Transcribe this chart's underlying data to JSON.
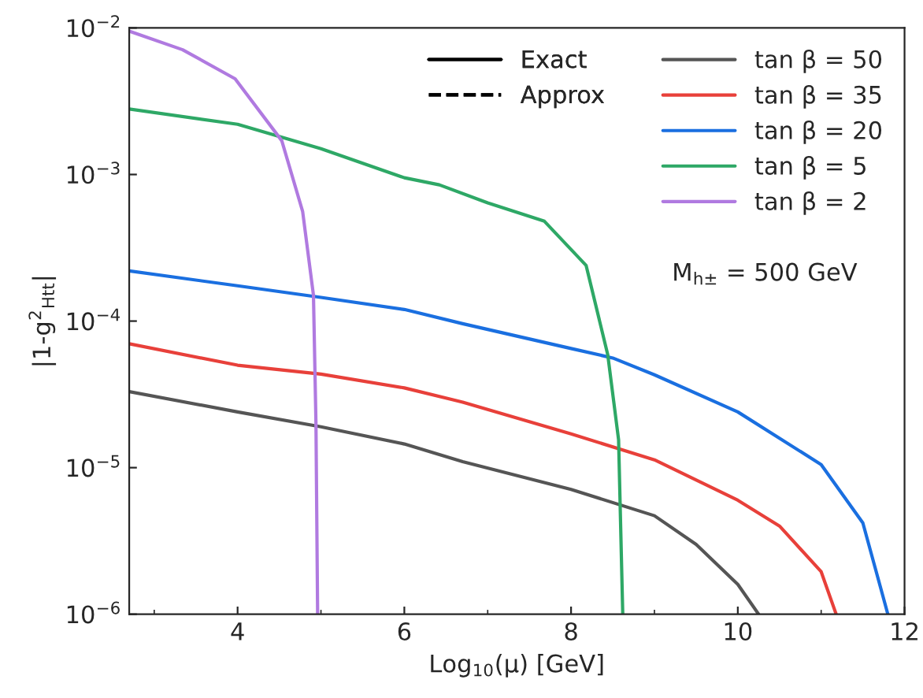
{
  "chart_data": {
    "type": "line",
    "xlabel": "Log$_{10}$(μ) [GeV]",
    "ylabel": "|1-g$^{2}$$_{Htt}$|",
    "log": "y",
    "xlim": [
      2.7,
      12
    ],
    "ylim": [
      1e-06,
      0.01
    ],
    "xticks": [
      {
        "value": 3,
        "label": null
      },
      4,
      {
        "value": 5,
        "label": null
      },
      6,
      {
        "value": 7,
        "label": null
      },
      8,
      {
        "value": 9,
        "label": null
      },
      10,
      {
        "value": 11,
        "label": null
      },
      12
    ],
    "yticks": [
      {
        "value": 1e-06,
        "label": "10$^{−6}$"
      },
      {
        "value": 1e-05,
        "label": "10$^{−5}$"
      },
      {
        "value": 0.0001,
        "label": "10$^{−4}$"
      },
      {
        "value": 0.001,
        "label": "10$^{−3}$"
      },
      {
        "value": 0.01,
        "label": "10$^{−2}$"
      }
    ],
    "grid": false,
    "legend": "top right",
    "line_style": "solid",
    "marker": "none",
    "annotations": [
      "Exact",
      "Approx",
      "M$_{h±}$ = 500 GeV"
    ],
    "series": [
      {
        "name": "tan β = 50",
        "color": "#555555",
        "x": [
          2.7,
          4,
          5,
          6,
          6.7,
          8,
          9,
          9.5,
          10,
          10.25
        ],
        "values": [
          3.3e-05,
          2.4e-05,
          1.9e-05,
          1.45e-05,
          1.1e-05,
          7.1e-06,
          4.7e-06,
          3e-06,
          1.6e-06,
          1e-06
        ]
      },
      {
        "name": "tan β = 35",
        "color": "#e8403a",
        "x": [
          2.7,
          4,
          5,
          6,
          6.7,
          8,
          9,
          10,
          10.5,
          11,
          11.18
        ],
        "values": [
          7e-05,
          5e-05,
          4.35e-05,
          3.5e-05,
          2.8e-05,
          1.7e-05,
          1.13e-05,
          6e-06,
          4e-06,
          1.95e-06,
          1e-06
        ]
      },
      {
        "name": "tan β = 20",
        "color": "#1a6fe0",
        "x": [
          2.7,
          4,
          5,
          6,
          6.7,
          8,
          8.5,
          9,
          10,
          11,
          11.5,
          11.8
        ],
        "values": [
          0.00022,
          0.000174,
          0.000145,
          0.00012,
          9.6e-05,
          6.5e-05,
          5.6e-05,
          4.3e-05,
          2.4e-05,
          1.05e-05,
          4.2e-06,
          1e-06
        ]
      },
      {
        "name": "tan β = 5",
        "color": "#2ea866",
        "x": [
          2.7,
          4,
          5,
          6,
          6.42,
          7,
          7.68,
          8.18,
          8.44,
          8.57,
          8.62
        ],
        "values": [
          0.0028,
          0.0022,
          0.0015,
          0.00095,
          0.00085,
          0.00064,
          0.00048,
          0.00024,
          5.9e-05,
          1.55e-05,
          1e-06
        ]
      },
      {
        "name": "tan β = 2",
        "color": "#b07ae0",
        "x": [
          2.7,
          3.34,
          3.97,
          4.53,
          4.78,
          4.91,
          4.94,
          4.96
        ],
        "values": [
          0.0095,
          0.0071,
          0.0045,
          0.0017,
          0.00056,
          0.00015,
          2e-05,
          1e-06
        ]
      }
    ]
  }
}
